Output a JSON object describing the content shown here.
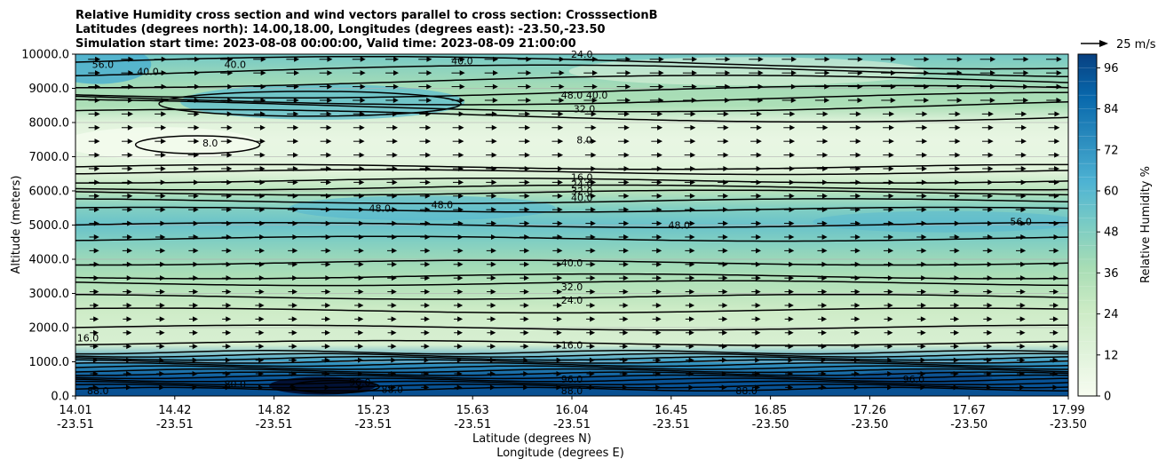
{
  "chart_data": {
    "type": "contour",
    "title_lines": [
      "Relative Humidity cross section and wind vectors parallel to cross section: CrosssectionB",
      "Latitudes (degrees north): 14.00,18.00, Longitudes (degrees east): -23.50,-23.50",
      "Simulation start time: 2023-08-08 00:00:00, Valid time: 2023-08-09 21:00:00"
    ],
    "xlabel": "Latitude (degrees N)",
    "xlabel2": "Longitude (degrees E)",
    "ylabel": "Altitude (meters)",
    "ylim": [
      0,
      10000
    ],
    "y_ticks": [
      "0.0",
      "1000.0",
      "2000.0",
      "3000.0",
      "4000.0",
      "5000.0",
      "6000.0",
      "7000.0",
      "8000.0",
      "9000.0",
      "10000.0"
    ],
    "x_tick_lat": [
      "14.01",
      "14.42",
      "14.82",
      "15.23",
      "15.63",
      "16.04",
      "16.45",
      "16.85",
      "17.26",
      "17.67",
      "17.99"
    ],
    "x_tick_lon": [
      "-23.51",
      "-23.51",
      "-23.51",
      "-23.51",
      "-23.51",
      "-23.51",
      "-23.51",
      "-23.50",
      "-23.50",
      "-23.50",
      "-23.50"
    ],
    "grid": "horizontal",
    "colorbar": {
      "label": "Relative Humidity %",
      "ticks": [
        "0",
        "12",
        "24",
        "36",
        "48",
        "60",
        "72",
        "84",
        "96"
      ],
      "range": [
        0,
        100
      ],
      "colormap": "GnBu",
      "colors": [
        "#f7fcf0",
        "#e0f3db",
        "#ccebc5",
        "#a8ddb5",
        "#7bccc4",
        "#4eb3d3",
        "#2b8cbe",
        "#0868ac",
        "#084081"
      ]
    },
    "quiver_key": "25 m/s",
    "rh_profile": [
      {
        "alt": 0,
        "rh": 95
      },
      {
        "alt": 500,
        "rh": 94
      },
      {
        "alt": 1000,
        "rh": 70
      },
      {
        "alt": 1500,
        "rh": 18
      },
      {
        "alt": 2000,
        "rh": 20
      },
      {
        "alt": 2500,
        "rh": 24
      },
      {
        "alt": 3000,
        "rh": 31
      },
      {
        "alt": 3500,
        "rh": 36
      },
      {
        "alt": 4000,
        "rh": 41
      },
      {
        "alt": 4500,
        "rh": 48
      },
      {
        "alt": 5000,
        "rh": 55
      },
      {
        "alt": 5500,
        "rh": 48
      },
      {
        "alt": 6000,
        "rh": 32
      },
      {
        "alt": 6500,
        "rh": 14
      },
      {
        "alt": 7000,
        "rh": 9
      },
      {
        "alt": 7500,
        "rh": 8
      },
      {
        "alt": 8000,
        "rh": 12
      },
      {
        "alt": 8500,
        "rh": 36
      },
      {
        "alt": 9000,
        "rh": 38
      },
      {
        "alt": 9500,
        "rh": 44
      },
      {
        "alt": 10000,
        "rh": 52
      }
    ],
    "contour_labels": [
      {
        "text": "40.0",
        "lat": 14.3,
        "alt": 9500
      },
      {
        "text": "40.0",
        "lat": 14.65,
        "alt": 9700
      },
      {
        "text": "40.0",
        "lat": 15.56,
        "alt": 9800
      },
      {
        "text": "24.0",
        "lat": 16.04,
        "alt": 10000
      },
      {
        "text": "56.0",
        "lat": 14.12,
        "alt": 9700
      },
      {
        "text": "48.0",
        "lat": 16.0,
        "alt": 8800
      },
      {
        "text": "40.0",
        "lat": 16.1,
        "alt": 8800
      },
      {
        "text": "32.0",
        "lat": 16.05,
        "alt": 8400
      },
      {
        "text": "8.0",
        "lat": 14.55,
        "alt": 7400
      },
      {
        "text": "8.0",
        "lat": 16.05,
        "alt": 7500
      },
      {
        "text": "16.0",
        "lat": 16.04,
        "alt": 6400
      },
      {
        "text": "24.0",
        "lat": 16.04,
        "alt": 6200
      },
      {
        "text": "32.0",
        "lat": 16.04,
        "alt": 6000
      },
      {
        "text": "40.0",
        "lat": 16.04,
        "alt": 5800
      },
      {
        "text": "48.0",
        "lat": 15.23,
        "alt": 5500
      },
      {
        "text": "48.0",
        "lat": 15.48,
        "alt": 5600
      },
      {
        "text": "48.0",
        "lat": 16.43,
        "alt": 5000
      },
      {
        "text": "56.0",
        "lat": 17.8,
        "alt": 5100
      },
      {
        "text": "40.0",
        "lat": 16.0,
        "alt": 3900
      },
      {
        "text": "32.0",
        "lat": 16.0,
        "alt": 3200
      },
      {
        "text": "24.0",
        "lat": 16.0,
        "alt": 2800
      },
      {
        "text": "16.0",
        "lat": 14.06,
        "alt": 1700
      },
      {
        "text": "16.0",
        "lat": 16.0,
        "alt": 1500
      },
      {
        "text": "80.0",
        "lat": 14.65,
        "alt": 350
      },
      {
        "text": "96.0",
        "lat": 15.15,
        "alt": 400
      },
      {
        "text": "88.0",
        "lat": 15.28,
        "alt": 200
      },
      {
        "text": "96.0",
        "lat": 16.0,
        "alt": 500
      },
      {
        "text": "88.0",
        "lat": 16.0,
        "alt": 150
      },
      {
        "text": "88.0",
        "lat": 16.7,
        "alt": 150
      },
      {
        "text": "96.0",
        "lat": 17.37,
        "alt": 500
      },
      {
        "text": "88.0",
        "lat": 14.1,
        "alt": 150
      }
    ]
  }
}
